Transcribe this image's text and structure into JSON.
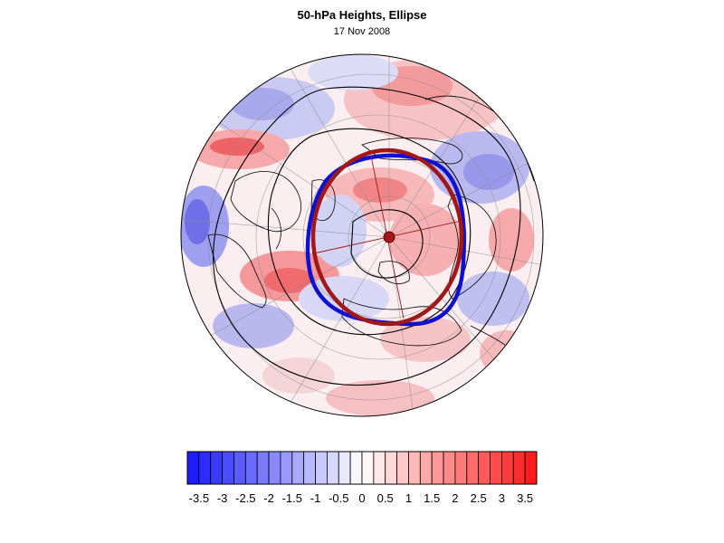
{
  "title": "50-hPa Heights, Ellipse",
  "date": "17 Nov 2008",
  "colors": {
    "positive_max": "#ff1a1a",
    "negative_max": "#1a1aff",
    "ellipse_fit": "#a01818",
    "vortex_edge": "#1010d0",
    "contour": "#000000"
  },
  "colorbar": {
    "levels": [
      -3.75,
      -3.5,
      -3.25,
      -3,
      -2.75,
      -2.5,
      -2.25,
      -2,
      -1.75,
      -1.5,
      -1.25,
      -1,
      -0.75,
      -0.5,
      -0.25,
      0,
      0.25,
      0.5,
      0.75,
      1,
      1.25,
      1.5,
      1.75,
      2,
      2.25,
      2.5,
      2.75,
      3,
      3.25,
      3.5,
      3.75
    ],
    "labels": [
      "-3.5",
      "-3",
      "-2.5",
      "-2",
      "-1.5",
      "-1",
      "-0.5",
      "0",
      "0.5",
      "1",
      "1.5",
      "2",
      "2.5",
      "3",
      "3.5"
    ]
  }
}
